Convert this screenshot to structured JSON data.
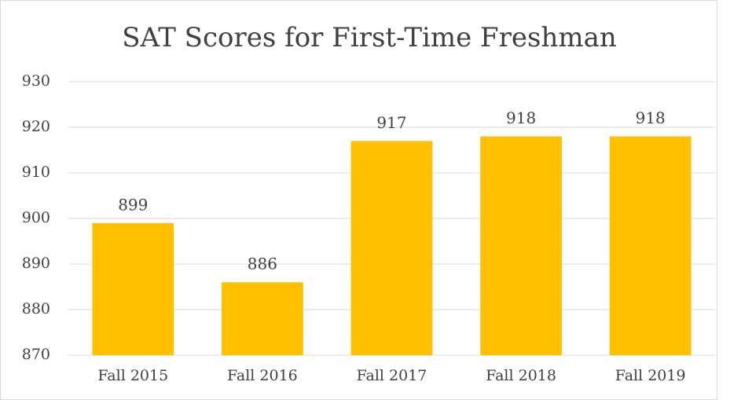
{
  "chart_data": {
    "type": "bar",
    "title": "SAT Scores for First-Time Freshman",
    "categories": [
      "Fall 2015",
      "Fall 2016",
      "Fall 2017",
      "Fall 2018",
      "Fall 2019"
    ],
    "values": [
      899,
      886,
      917,
      918,
      918
    ],
    "color": "#ffc000",
    "ylim": [
      870,
      930
    ],
    "yticks": [
      870,
      880,
      890,
      900,
      910,
      920,
      930
    ],
    "grid": true
  }
}
